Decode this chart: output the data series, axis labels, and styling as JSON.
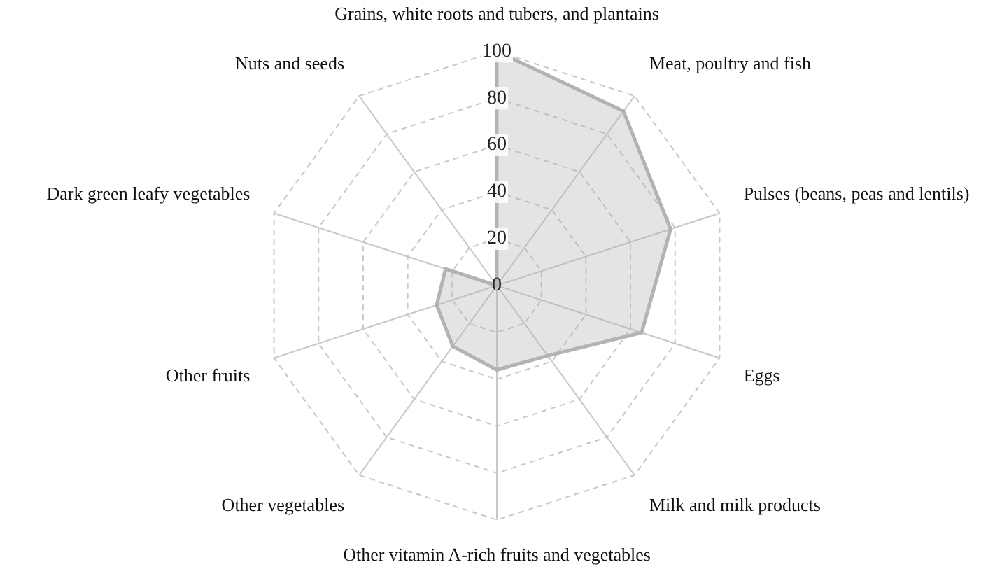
{
  "chart_data": {
    "type": "radar",
    "categories": [
      "Grains, white roots and tubers, and plantains",
      "Meat, poultry and fish",
      "Pulses (beans, peas and lentils)",
      "Eggs",
      "Milk and milk products",
      "Other vitamin A-rich fruits and vegetables",
      "Other vegetables",
      "Other fruits",
      "Dark green leafy vegetables",
      "Nuts and seeds"
    ],
    "series": [
      {
        "color": "#b3b3b3",
        "values": [
          100,
          92,
          78,
          65,
          37,
          36,
          32,
          27,
          23,
          0
        ]
      }
    ],
    "ylim": [
      0,
      100
    ],
    "yticks": [
      0,
      20,
      40,
      60,
      80,
      100
    ],
    "grid": true,
    "marker": "none",
    "line_style": "solid"
  }
}
